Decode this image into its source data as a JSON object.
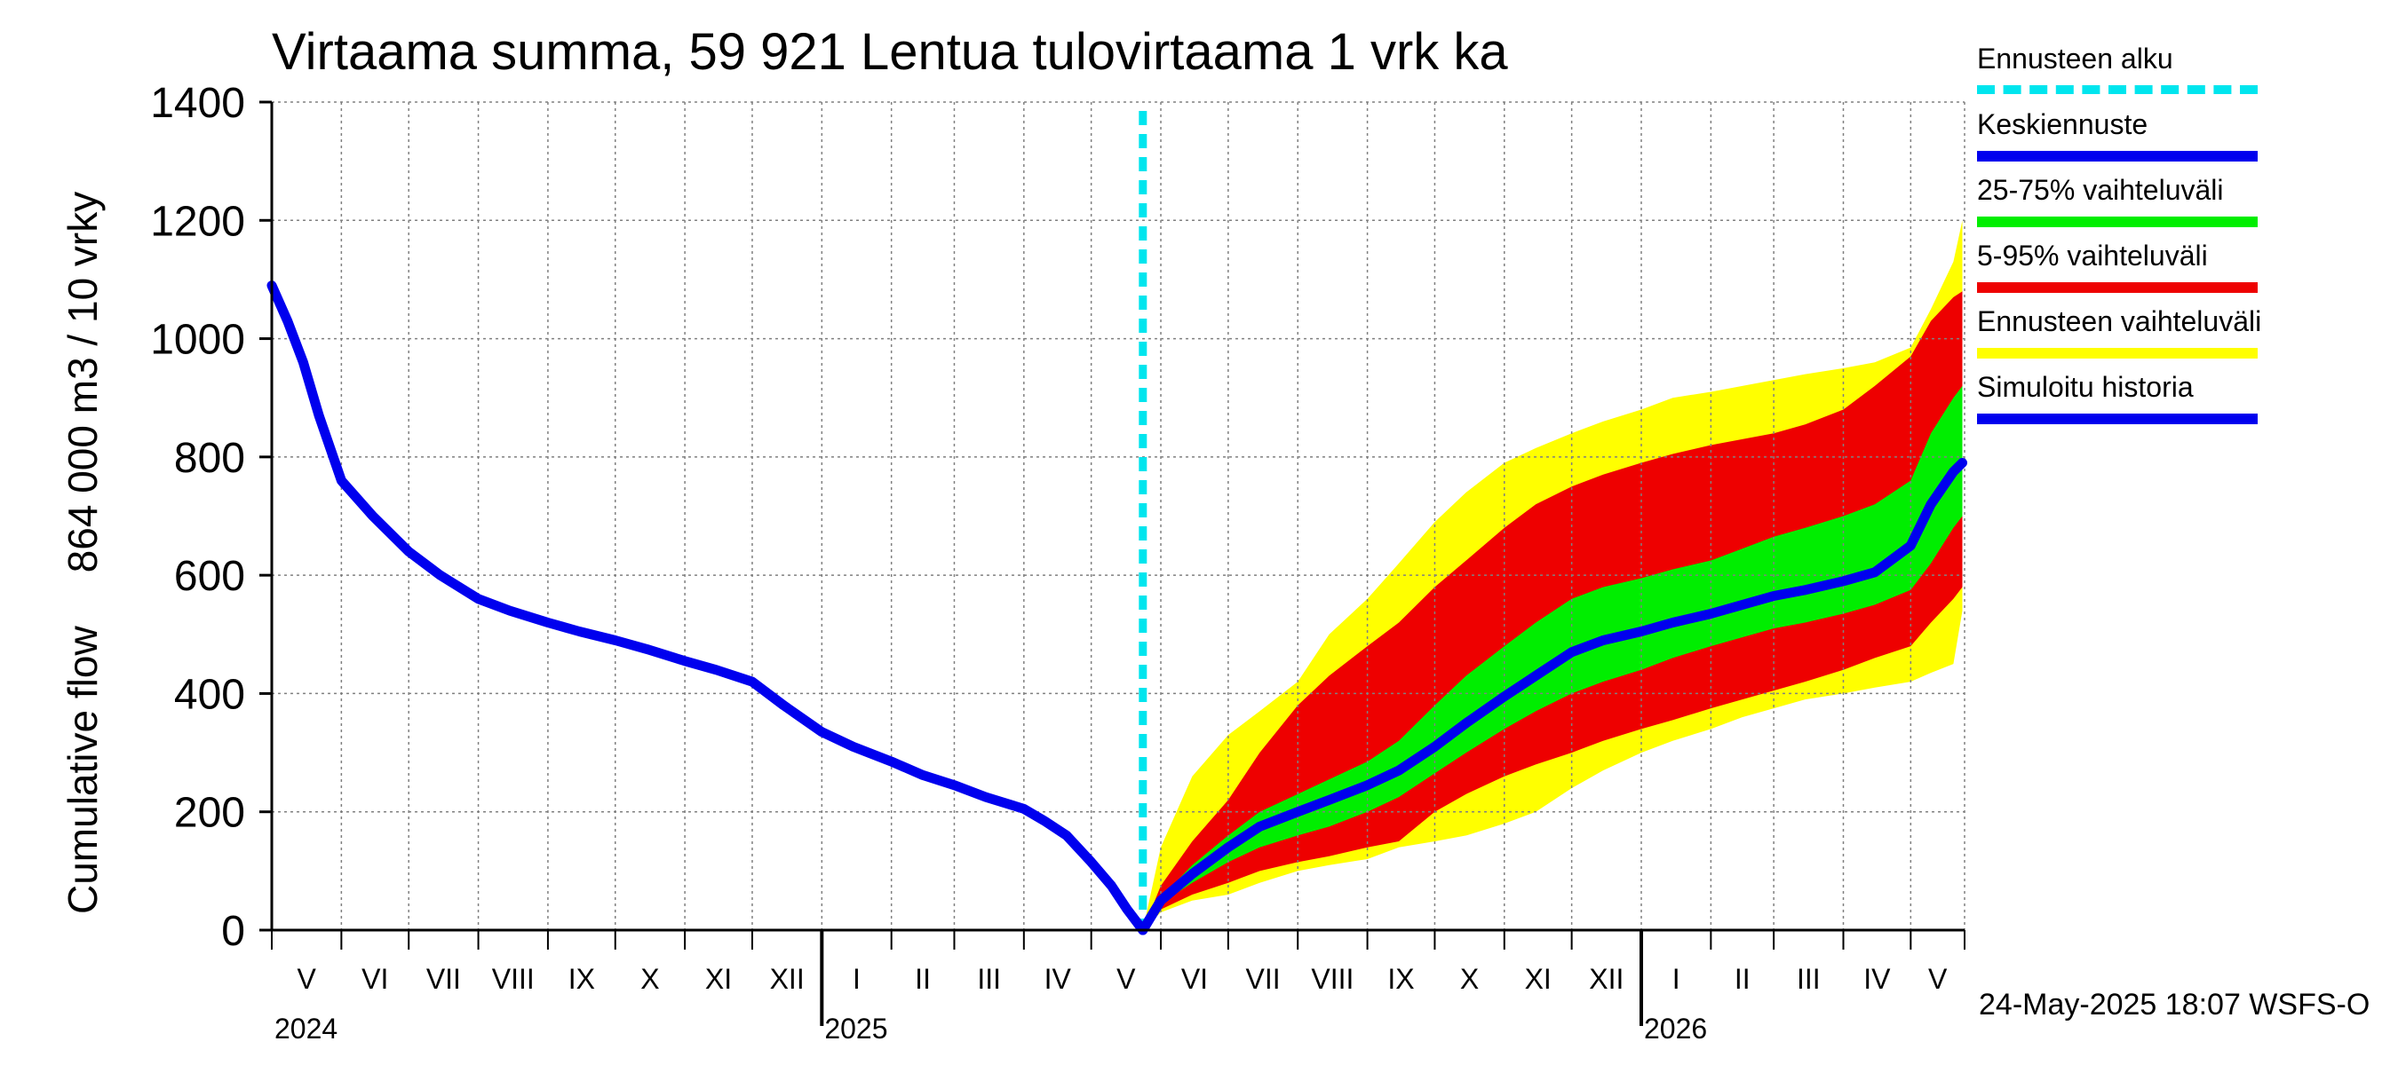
{
  "chart_data": {
    "type": "area",
    "title": "Virtaama summa, 59 921 Lentua tulovirtaama 1 vrk ka",
    "ylabel_parts": [
      "Cumulative flow",
      "864 000 m3 / 10 vrky"
    ],
    "ylim": [
      0,
      1400
    ],
    "yticks": [
      "0",
      "200",
      "400",
      "600",
      "800",
      "1000",
      "1200",
      "1400"
    ],
    "grid": true,
    "months": [
      "V",
      "VI",
      "VII",
      "VIII",
      "IX",
      "X",
      "XI",
      "XII",
      "I",
      "II",
      "III",
      "IV",
      "V",
      "VI",
      "VII",
      "VIII",
      "IX",
      "X",
      "XI",
      "XII",
      "I",
      "II",
      "III",
      "IV",
      "V"
    ],
    "years": [
      "2024",
      "2025",
      "2026"
    ],
    "forecast_start": "2025-05-24",
    "legend_position": "right",
    "legend": [
      {
        "label": "Ennusteen alku",
        "color": "#00e5ee",
        "style": "dashed"
      },
      {
        "label": "Keskiennuste",
        "color": "#0000ee",
        "style": "line"
      },
      {
        "label": "25-75% vaihteluväli",
        "color": "#00ee00",
        "style": "band"
      },
      {
        "label": "5-95% vaihteluväli",
        "color": "#ee0000",
        "style": "band"
      },
      {
        "label": "Ennusteen vaihteluväli",
        "color": "#ffff00",
        "style": "band"
      },
      {
        "label": "Simuloitu historia",
        "color": "#0000ee",
        "style": "line"
      }
    ],
    "history": {
      "x": [
        "2024-05-01",
        "2024-05-08",
        "2024-05-15",
        "2024-05-22",
        "2024-06-01",
        "2024-06-15",
        "2024-07-01",
        "2024-07-15",
        "2024-08-01",
        "2024-08-15",
        "2024-09-01",
        "2024-09-15",
        "2024-10-01",
        "2024-10-15",
        "2024-11-01",
        "2024-11-15",
        "2024-12-01",
        "2024-12-15",
        "2025-01-01",
        "2025-01-15",
        "2025-02-01",
        "2025-02-15",
        "2025-03-01",
        "2025-03-15",
        "2025-04-01",
        "2025-04-10",
        "2025-04-20",
        "2025-05-01",
        "2025-05-10",
        "2025-05-17",
        "2025-05-24"
      ],
      "values": [
        1090,
        1030,
        960,
        870,
        760,
        700,
        640,
        600,
        560,
        540,
        520,
        505,
        490,
        475,
        455,
        440,
        420,
        380,
        335,
        310,
        285,
        262,
        245,
        225,
        205,
        185,
        160,
        115,
        75,
        35,
        0
      ]
    },
    "x": [
      "2025-05-24",
      "2025-06-01",
      "2025-06-15",
      "2025-07-01",
      "2025-07-15",
      "2025-08-01",
      "2025-08-15",
      "2025-09-01",
      "2025-09-15",
      "2025-10-01",
      "2025-10-15",
      "2025-11-01",
      "2025-11-15",
      "2025-12-01",
      "2025-12-15",
      "2026-01-01",
      "2026-01-15",
      "2026-02-01",
      "2026-02-15",
      "2026-03-01",
      "2026-03-15",
      "2026-04-01",
      "2026-04-15",
      "2026-05-01",
      "2026-05-10",
      "2026-05-20",
      "2026-05-24"
    ],
    "series": [
      {
        "name": "Keskiennuste",
        "values": [
          0,
          50,
          95,
          140,
          175,
          200,
          220,
          245,
          270,
          310,
          350,
          395,
          430,
          470,
          490,
          505,
          520,
          535,
          550,
          565,
          575,
          590,
          605,
          650,
          720,
          775,
          790
        ]
      },
      {
        "name": "25-75% vaihteluväli",
        "low": [
          0,
          45,
          80,
          115,
          140,
          160,
          175,
          200,
          225,
          265,
          300,
          340,
          370,
          400,
          420,
          440,
          460,
          480,
          495,
          510,
          520,
          535,
          550,
          575,
          620,
          680,
          700
        ],
        "high": [
          0,
          55,
          110,
          160,
          200,
          230,
          255,
          285,
          320,
          380,
          430,
          480,
          520,
          560,
          580,
          595,
          610,
          625,
          645,
          665,
          680,
          700,
          720,
          760,
          840,
          900,
          920
        ]
      },
      {
        "name": "5-95% vaihteluväli",
        "low": [
          0,
          35,
          60,
          80,
          100,
          115,
          125,
          140,
          150,
          200,
          230,
          260,
          280,
          300,
          320,
          340,
          355,
          375,
          390,
          405,
          420,
          440,
          460,
          480,
          520,
          560,
          580
        ],
        "high": [
          0,
          75,
          150,
          220,
          300,
          380,
          430,
          480,
          520,
          580,
          625,
          680,
          720,
          750,
          770,
          790,
          805,
          820,
          830,
          840,
          855,
          880,
          920,
          970,
          1030,
          1070,
          1080
        ]
      },
      {
        "name": "Ennusteen vaihteluväli",
        "low": [
          0,
          30,
          50,
          60,
          80,
          100,
          110,
          120,
          140,
          150,
          160,
          180,
          200,
          240,
          270,
          300,
          320,
          340,
          360,
          375,
          390,
          400,
          410,
          420,
          435,
          450,
          540
        ],
        "high": [
          0,
          140,
          260,
          330,
          370,
          420,
          500,
          560,
          620,
          690,
          740,
          790,
          815,
          840,
          860,
          880,
          900,
          910,
          920,
          930,
          940,
          950,
          960,
          985,
          1050,
          1130,
          1200
        ]
      }
    ]
  },
  "footer": "24-May-2025 18:07 WSFS-O"
}
